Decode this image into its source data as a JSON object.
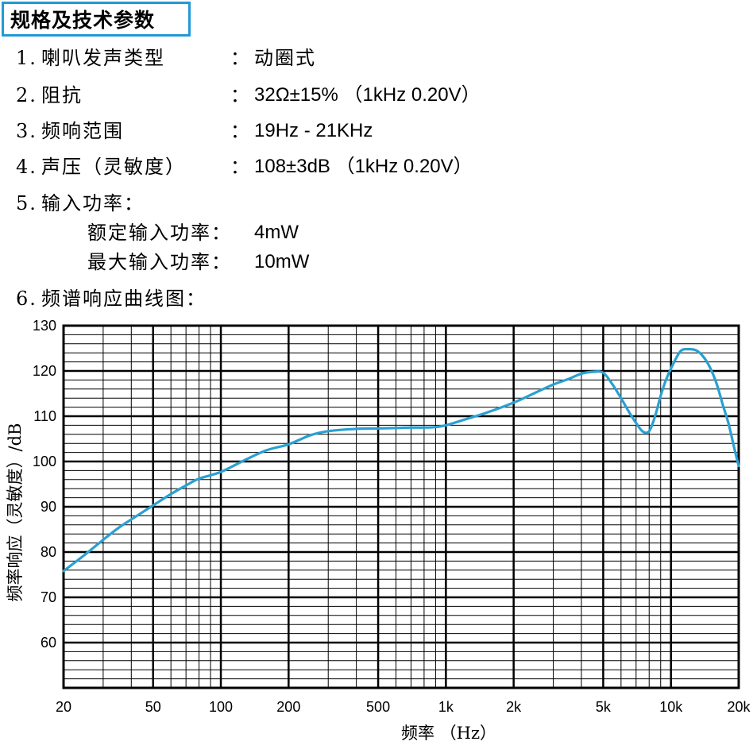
{
  "title": "规格及技术参数",
  "specs": [
    {
      "num": "1.",
      "label": "喇叭发声类型",
      "sep": "：",
      "value": "动圈式"
    },
    {
      "num": "2.",
      "label": "阻抗",
      "sep": "：",
      "value": "32Ω±15% （1kHz 0.20V）"
    },
    {
      "num": "3.",
      "label": "频响范围",
      "sep": "：",
      "value": "19Hz - 21KHz"
    },
    {
      "num": "4.",
      "label": "声压（灵敏度）",
      "sep": "：",
      "value": "108±3dB （1kHz 0.20V）"
    },
    {
      "num": "5.",
      "label": "输入功率：",
      "sep": "",
      "value": ""
    },
    {
      "num": "",
      "label": "额定输入功率：",
      "sep": "",
      "value": "4mW"
    },
    {
      "num": "",
      "label": "最大输入功率：",
      "sep": "",
      "value": "10mW"
    },
    {
      "num": "6.",
      "label": "频谱响应曲线图：",
      "sep": "",
      "value": ""
    }
  ],
  "chart_data": {
    "type": "line",
    "title": "",
    "xlabel": "频率 （Hz）",
    "ylabel": "频率响应（灵敏度）/dB",
    "x_scale": "log",
    "xlim": [
      20,
      20000
    ],
    "ylim": [
      50,
      130
    ],
    "grid": true,
    "x_ticks": [
      {
        "value": 20,
        "label": "20"
      },
      {
        "value": 50,
        "label": "50"
      },
      {
        "value": 100,
        "label": "100"
      },
      {
        "value": 200,
        "label": "200"
      },
      {
        "value": 500,
        "label": "500"
      },
      {
        "value": 1000,
        "label": "1k"
      },
      {
        "value": 2000,
        "label": "2k"
      },
      {
        "value": 5000,
        "label": "5k"
      },
      {
        "value": 10000,
        "label": "10k"
      },
      {
        "value": 20000,
        "label": "20k"
      }
    ],
    "y_ticks": [
      60,
      70,
      80,
      90,
      100,
      110,
      120,
      130
    ],
    "line_color": "#2aa0d2",
    "series": [
      {
        "x": [
          20,
          25,
          30,
          35,
          40,
          50,
          60,
          70,
          80,
          100,
          130,
          160,
          200,
          250,
          300,
          400,
          500,
          600,
          700,
          800,
          900,
          1000,
          1200,
          1500,
          2000,
          2500,
          3000,
          3500,
          4000,
          4500,
          5000,
          5500,
          6000,
          6500,
          7000,
          7500,
          8000,
          8500,
          9000,
          9500,
          10000,
          11000,
          12000,
          13000,
          14000,
          15000,
          16000,
          17000,
          18000,
          19000,
          20000
        ],
        "y": [
          75.8,
          79.5,
          82.7,
          85.3,
          87.2,
          90.3,
          92.8,
          94.7,
          96.2,
          97.7,
          100.5,
          102.5,
          103.8,
          105.8,
          106.7,
          107.2,
          107.3,
          107.4,
          107.5,
          107.5,
          107.6,
          108.0,
          109.2,
          110.7,
          113.0,
          115.2,
          117.0,
          118.2,
          119.4,
          119.8,
          119.6,
          117.0,
          114.0,
          111.0,
          108.5,
          106.6,
          106.7,
          110.0,
          114.5,
          118.0,
          120.5,
          124.3,
          124.8,
          124.5,
          123.0,
          120.5,
          117.0,
          112.5,
          108.5,
          103.5,
          99.0
        ]
      }
    ]
  }
}
